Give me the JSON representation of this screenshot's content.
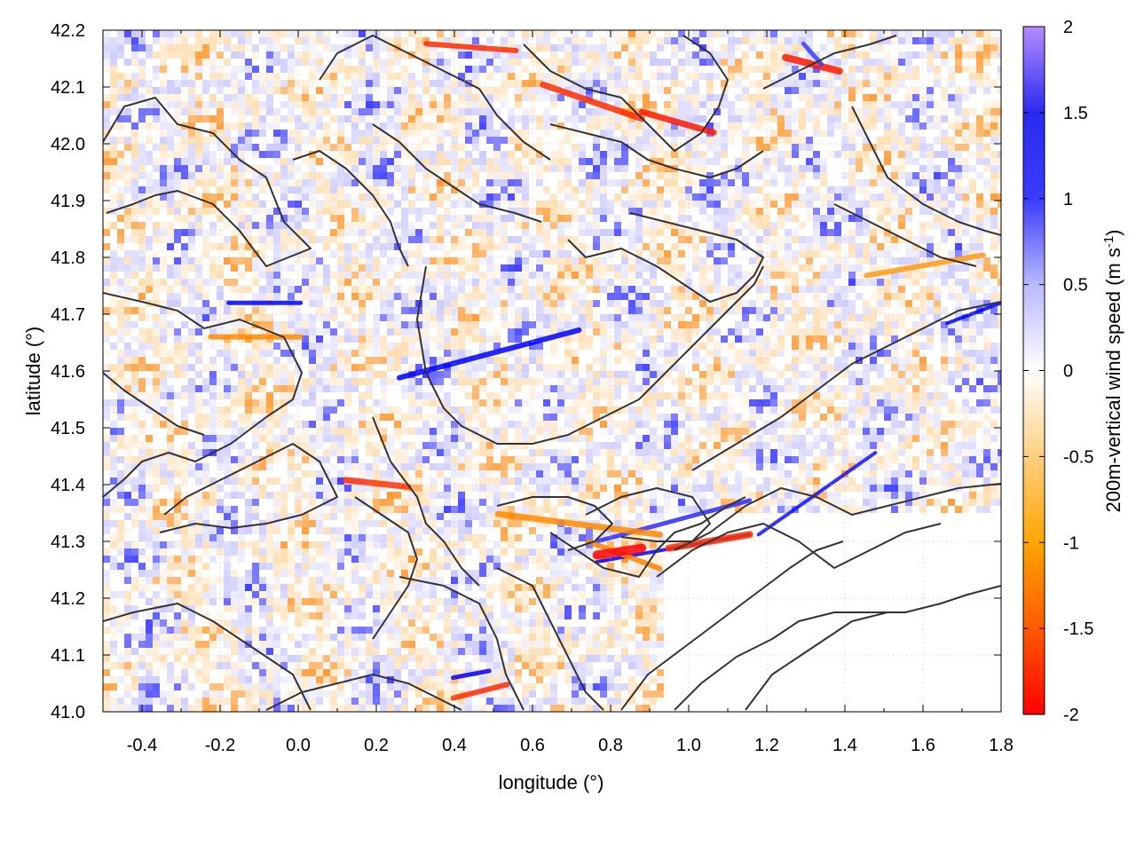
{
  "chart_data": {
    "type": "heatmap",
    "title": "",
    "xlabel": "longitude (°)",
    "ylabel": "latitude (°)",
    "colorbar_label_base": "200m-vertical wind speed (m s",
    "colorbar_label_sup": "-1",
    "colorbar_label_close": ")",
    "xlim": [
      -0.5,
      1.8
    ],
    "ylim": [
      41.0,
      42.2
    ],
    "zlim": [
      -2,
      2
    ],
    "x_ticks": [
      -0.4,
      -0.2,
      0.0,
      0.2,
      0.4,
      0.6,
      0.8,
      1.0,
      1.2,
      1.4,
      1.6,
      1.8
    ],
    "x_tick_labels": [
      "-0.4",
      "-0.2",
      "0.0",
      "0.2",
      "0.4",
      "0.6",
      "0.8",
      "1.0",
      "1.2",
      "1.4",
      "1.6",
      "1.8"
    ],
    "y_ticks": [
      41.0,
      41.1,
      41.2,
      41.3,
      41.4,
      41.5,
      41.6,
      41.7,
      41.8,
      41.9,
      42.0,
      42.1,
      42.2
    ],
    "y_tick_labels": [
      "41.0",
      "41.1",
      "41.2",
      "41.3",
      "41.4",
      "41.5",
      "41.6",
      "41.7",
      "41.8",
      "41.9",
      "42.0",
      "42.1",
      "42.2"
    ],
    "colorbar_ticks": [
      2,
      1.5,
      1,
      0.5,
      0,
      -0.5,
      -1,
      -1.5,
      -2
    ],
    "colorbar_tick_labels": [
      "2",
      "1.5",
      "1",
      "0.5",
      "0",
      "-0.5",
      "-1",
      "-1.5",
      "-2"
    ],
    "colorscale": [
      "#ff0000",
      "#ff8800",
      "#ffaa00",
      "#ffd9a0",
      "#ffffff",
      "#c0c0ff",
      "#5050ff",
      "#0000ff",
      "#b080ff"
    ],
    "contour_color": "#333333",
    "grid": true,
    "legend": "colorbar-right"
  }
}
